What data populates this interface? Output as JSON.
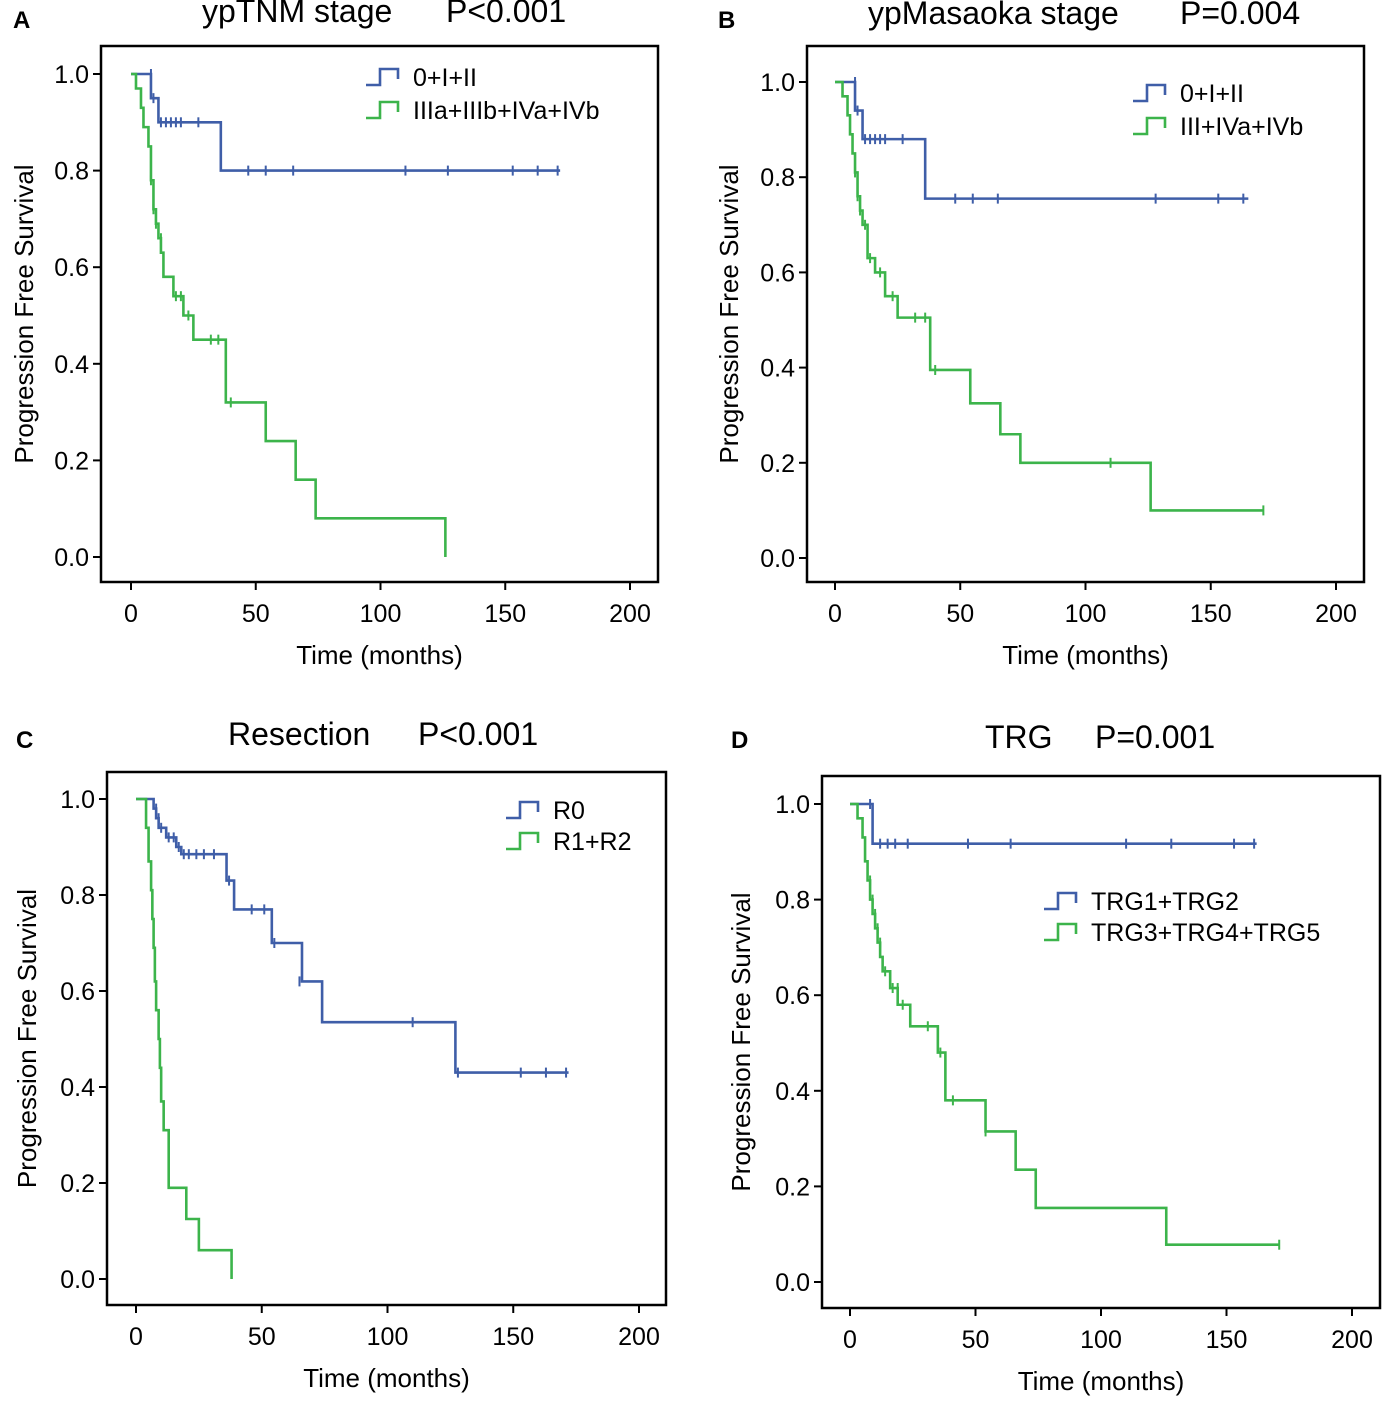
{
  "chart_data": [
    {
      "type": "line",
      "panel": "A",
      "title": "ypTNM stage",
      "pvalue": "P<0.001",
      "xlabel": "Time (months)",
      "ylabel": "Progression Free Survival",
      "xlim": [
        0,
        200
      ],
      "ylim": [
        0,
        1
      ],
      "xticks": [
        "0",
        "50",
        "100",
        "150",
        "200"
      ],
      "yticks": [
        "0.0",
        "0.2",
        "0.4",
        "0.6",
        "0.8",
        "1.0"
      ],
      "legend_position": "top-right",
      "series": [
        {
          "name": "0+I+II",
          "color": "#3f5ea8",
          "steps": [
            [
              0,
              1.0
            ],
            [
              8,
              0.95
            ],
            [
              11,
              0.9
            ],
            [
              36,
              0.8
            ],
            [
              172,
              0.8
            ]
          ],
          "censors": [
            [
              8,
              1.0
            ],
            [
              9,
              0.95
            ],
            [
              12,
              0.9
            ],
            [
              14,
              0.9
            ],
            [
              16,
              0.9
            ],
            [
              18,
              0.9
            ],
            [
              20,
              0.9
            ],
            [
              27,
              0.9
            ],
            [
              47,
              0.8
            ],
            [
              54,
              0.8
            ],
            [
              65,
              0.8
            ],
            [
              110,
              0.8
            ],
            [
              127,
              0.8
            ],
            [
              153,
              0.8
            ],
            [
              163,
              0.8
            ],
            [
              171,
              0.8
            ]
          ]
        },
        {
          "name": "IIIa+IIIb+IVa+IVb",
          "color": "#3cb44b",
          "steps": [
            [
              0,
              1.0
            ],
            [
              2,
              0.97
            ],
            [
              4,
              0.93
            ],
            [
              5,
              0.89
            ],
            [
              7,
              0.85
            ],
            [
              8,
              0.78
            ],
            [
              9,
              0.72
            ],
            [
              10,
              0.69
            ],
            [
              11,
              0.66
            ],
            [
              12,
              0.63
            ],
            [
              13,
              0.58
            ],
            [
              17,
              0.54
            ],
            [
              21,
              0.5
            ],
            [
              25,
              0.45
            ],
            [
              38,
              0.32
            ],
            [
              54,
              0.24
            ],
            [
              66,
              0.16
            ],
            [
              74,
              0.08
            ],
            [
              126,
              0.0
            ]
          ],
          "censors": [
            [
              8,
              0.78
            ],
            [
              9,
              0.72
            ],
            [
              10,
              0.69
            ],
            [
              12,
              0.66
            ],
            [
              18,
              0.54
            ],
            [
              20,
              0.54
            ],
            [
              23,
              0.5
            ],
            [
              32,
              0.45
            ],
            [
              35,
              0.45
            ],
            [
              40,
              0.32
            ]
          ]
        }
      ]
    },
    {
      "type": "line",
      "panel": "B",
      "title": "ypMasaoka stage",
      "pvalue": "P=0.004",
      "xlabel": "Time (months)",
      "ylabel": "Progression Free Survival",
      "xlim": [
        0,
        200
      ],
      "ylim": [
        0,
        1
      ],
      "xticks": [
        "0",
        "50",
        "100",
        "150",
        "200"
      ],
      "yticks": [
        "0.0",
        "0.2",
        "0.4",
        "0.6",
        "0.8",
        "1.0"
      ],
      "legend_position": "top-right",
      "series": [
        {
          "name": "0+I+II",
          "color": "#3f5ea8",
          "steps": [
            [
              0,
              1.0
            ],
            [
              8,
              0.94
            ],
            [
              11,
              0.88
            ],
            [
              36,
              0.755
            ],
            [
              165,
              0.755
            ]
          ],
          "censors": [
            [
              8,
              1.0
            ],
            [
              9,
              0.94
            ],
            [
              12,
              0.88
            ],
            [
              14,
              0.88
            ],
            [
              16,
              0.88
            ],
            [
              18,
              0.88
            ],
            [
              20,
              0.88
            ],
            [
              27,
              0.88
            ],
            [
              48,
              0.755
            ],
            [
              55,
              0.755
            ],
            [
              65,
              0.755
            ],
            [
              128,
              0.755
            ],
            [
              153,
              0.755
            ],
            [
              163,
              0.755
            ]
          ]
        },
        {
          "name": "III+IVa+IVb",
          "color": "#3cb44b",
          "steps": [
            [
              0,
              1.0
            ],
            [
              3,
              0.97
            ],
            [
              5,
              0.93
            ],
            [
              6,
              0.89
            ],
            [
              7,
              0.85
            ],
            [
              8,
              0.81
            ],
            [
              9,
              0.76
            ],
            [
              10,
              0.73
            ],
            [
              11,
              0.7
            ],
            [
              13,
              0.63
            ],
            [
              16,
              0.6
            ],
            [
              20,
              0.55
            ],
            [
              25,
              0.505
            ],
            [
              38,
              0.395
            ],
            [
              54,
              0.325
            ],
            [
              66,
              0.26
            ],
            [
              74,
              0.2
            ],
            [
              126,
              0.1
            ],
            [
              171,
              0.1
            ]
          ],
          "censors": [
            [
              8,
              0.81
            ],
            [
              9,
              0.76
            ],
            [
              10,
              0.73
            ],
            [
              12,
              0.7
            ],
            [
              14,
              0.63
            ],
            [
              18,
              0.6
            ],
            [
              23,
              0.55
            ],
            [
              32,
              0.505
            ],
            [
              36,
              0.505
            ],
            [
              40,
              0.395
            ],
            [
              110,
              0.2
            ],
            [
              171,
              0.1
            ]
          ]
        }
      ]
    },
    {
      "type": "line",
      "panel": "C",
      "title": "Resection",
      "pvalue": "P<0.001",
      "xlabel": "Time (months)",
      "ylabel": "Progression Free Survival",
      "xlim": [
        0,
        200
      ],
      "ylim": [
        0,
        1
      ],
      "xticks": [
        "0",
        "50",
        "100",
        "150",
        "200"
      ],
      "yticks": [
        "0.0",
        "0.2",
        "0.4",
        "0.6",
        "0.8",
        "1.0"
      ],
      "legend_position": "top-right",
      "series": [
        {
          "name": "R0",
          "color": "#3f5ea8",
          "steps": [
            [
              0,
              1.0
            ],
            [
              7,
              0.98
            ],
            [
              8,
              0.96
            ],
            [
              9,
              0.94
            ],
            [
              12,
              0.92
            ],
            [
              16,
              0.9
            ],
            [
              18,
              0.885
            ],
            [
              36,
              0.83
            ],
            [
              39,
              0.77
            ],
            [
              54,
              0.7
            ],
            [
              66,
              0.62
            ],
            [
              74,
              0.535
            ],
            [
              127,
              0.43
            ],
            [
              172,
              0.43
            ]
          ],
          "censors": [
            [
              8,
              0.98
            ],
            [
              9,
              0.96
            ],
            [
              10,
              0.94
            ],
            [
              13,
              0.92
            ],
            [
              15,
              0.92
            ],
            [
              17,
              0.9
            ],
            [
              19,
              0.885
            ],
            [
              21,
              0.885
            ],
            [
              24,
              0.885
            ],
            [
              27,
              0.885
            ],
            [
              31,
              0.885
            ],
            [
              37,
              0.83
            ],
            [
              46,
              0.77
            ],
            [
              51,
              0.77
            ],
            [
              55,
              0.7
            ],
            [
              65,
              0.62
            ],
            [
              110,
              0.535
            ],
            [
              128,
              0.43
            ],
            [
              153,
              0.43
            ],
            [
              163,
              0.43
            ],
            [
              171,
              0.43
            ]
          ]
        },
        {
          "name": "R1+R2",
          "color": "#3cb44b",
          "steps": [
            [
              0,
              1.0
            ],
            [
              4,
              0.94
            ],
            [
              5,
              0.87
            ],
            [
              6,
              0.81
            ],
            [
              6.5,
              0.75
            ],
            [
              7,
              0.69
            ],
            [
              7.5,
              0.62
            ],
            [
              8,
              0.56
            ],
            [
              9,
              0.5
            ],
            [
              9.5,
              0.44
            ],
            [
              10,
              0.37
            ],
            [
              11,
              0.31
            ],
            [
              13,
              0.19
            ],
            [
              20,
              0.125
            ],
            [
              25,
              0.06
            ],
            [
              38,
              0.0
            ]
          ],
          "censors": []
        }
      ]
    },
    {
      "type": "line",
      "panel": "D",
      "title": "TRG",
      "pvalue": "P=0.001",
      "xlabel": "Time (months)",
      "ylabel": "Progression Free Survival",
      "xlim": [
        0,
        200
      ],
      "ylim": [
        0,
        1
      ],
      "xticks": [
        "0",
        "50",
        "100",
        "150",
        "200"
      ],
      "yticks": [
        "0.0",
        "0.2",
        "0.4",
        "0.6",
        "0.8",
        "1.0"
      ],
      "legend_position": "right",
      "series": [
        {
          "name": "TRG1+TRG2",
          "color": "#3f5ea8",
          "steps": [
            [
              0,
              1.0
            ],
            [
              9,
              0.917
            ],
            [
              162,
              0.917
            ]
          ],
          "censors": [
            [
              8,
              1.0
            ],
            [
              12,
              0.917
            ],
            [
              15,
              0.917
            ],
            [
              18,
              0.917
            ],
            [
              23,
              0.917
            ],
            [
              47,
              0.917
            ],
            [
              64,
              0.917
            ],
            [
              110,
              0.917
            ],
            [
              128,
              0.917
            ],
            [
              153,
              0.917
            ],
            [
              161,
              0.917
            ]
          ]
        },
        {
          "name": "TRG3+TRG4+TRG5",
          "color": "#3cb44b",
          "steps": [
            [
              0,
              1.0
            ],
            [
              3,
              0.97
            ],
            [
              5,
              0.93
            ],
            [
              6,
              0.88
            ],
            [
              7,
              0.84
            ],
            [
              8,
              0.8
            ],
            [
              9,
              0.77
            ],
            [
              10,
              0.74
            ],
            [
              11,
              0.71
            ],
            [
              12,
              0.68
            ],
            [
              13,
              0.65
            ],
            [
              16,
              0.615
            ],
            [
              19,
              0.58
            ],
            [
              24,
              0.535
            ],
            [
              35,
              0.48
            ],
            [
              38,
              0.38
            ],
            [
              54,
              0.315
            ],
            [
              66,
              0.235
            ],
            [
              74,
              0.155
            ],
            [
              126,
              0.078
            ],
            [
              171,
              0.078
            ]
          ],
          "censors": [
            [
              8,
              0.84
            ],
            [
              9,
              0.8
            ],
            [
              10,
              0.77
            ],
            [
              11,
              0.74
            ],
            [
              12,
              0.71
            ],
            [
              14,
              0.65
            ],
            [
              17,
              0.615
            ],
            [
              19,
              0.615
            ],
            [
              21,
              0.58
            ],
            [
              31,
              0.535
            ],
            [
              36,
              0.48
            ],
            [
              41,
              0.38
            ],
            [
              54,
              0.315
            ],
            [
              171,
              0.078
            ]
          ]
        }
      ]
    }
  ]
}
